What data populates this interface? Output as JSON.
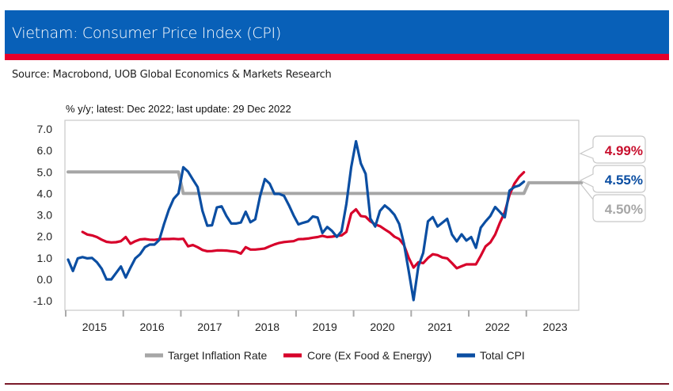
{
  "header": {
    "title": "Vietnam: Consumer Price Index (CPI)"
  },
  "source": "Source: Macrobond, UOB Global Economics & Markets Research",
  "chart_data": {
    "type": "line",
    "subtitle": "% y/y; latest: Dec 2022; last update: 29 Dec 2022",
    "ylim": [
      -1.0,
      7.0
    ],
    "yticks": [
      "7.0",
      "6.0",
      "5.0",
      "4.0",
      "3.0",
      "2.0",
      "1.0",
      "0.0",
      "-1.0"
    ],
    "xticks": [
      "2015",
      "2016",
      "2017",
      "2018",
      "2019",
      "2020",
      "2021",
      "2022",
      "2023"
    ],
    "xrange": [
      "2015-01",
      "2023-12"
    ],
    "grid": false,
    "legend_position": "bottom",
    "series": [
      {
        "name": "Target Inflation Rate",
        "color": "#A6A6A6",
        "start": "2015-01",
        "values": [
          5,
          5,
          5,
          5,
          5,
          5,
          5,
          5,
          5,
          5,
          5,
          5,
          5,
          5,
          5,
          5,
          5,
          5,
          5,
          5,
          5,
          5,
          5,
          5,
          4,
          4,
          4,
          4,
          4,
          4,
          4,
          4,
          4,
          4,
          4,
          4,
          4,
          4,
          4,
          4,
          4,
          4,
          4,
          4,
          4,
          4,
          4,
          4,
          4,
          4,
          4,
          4,
          4,
          4,
          4,
          4,
          4,
          4,
          4,
          4,
          4,
          4,
          4,
          4,
          4,
          4,
          4,
          4,
          4,
          4,
          4,
          4,
          4,
          4,
          4,
          4,
          4,
          4,
          4,
          4,
          4,
          4,
          4,
          4,
          4,
          4,
          4,
          4,
          4,
          4,
          4,
          4,
          4,
          4,
          4,
          4,
          4.5,
          4.5,
          4.5,
          4.5,
          4.5,
          4.5,
          4.5,
          4.5,
          4.5,
          4.5,
          4.5,
          4.5
        ]
      },
      {
        "name": "Core (Ex Food & Energy)",
        "color": "#D7002A",
        "start": "2015-04",
        "values": [
          2.21,
          2.09,
          2.05,
          1.97,
          1.85,
          1.75,
          1.72,
          1.73,
          1.78,
          1.97,
          1.66,
          1.78,
          1.86,
          1.88,
          1.85,
          1.84,
          1.87,
          1.88,
          1.88,
          1.89,
          1.87,
          1.89,
          1.54,
          1.6,
          1.5,
          1.37,
          1.31,
          1.32,
          1.35,
          1.35,
          1.34,
          1.31,
          1.29,
          1.2,
          1.5,
          1.39,
          1.39,
          1.41,
          1.44,
          1.54,
          1.63,
          1.7,
          1.74,
          1.76,
          1.78,
          1.87,
          1.88,
          1.9,
          1.94,
          1.97,
          2.03,
          1.97,
          1.99,
          2.03,
          2.05,
          2.21,
          3.07,
          3.26,
          2.95,
          2.92,
          2.7,
          2.56,
          2.48,
          2.33,
          2.19,
          1.99,
          1.88,
          1.6,
          1.0,
          0.55,
          0.8,
          0.76,
          1.0,
          1.17,
          1.13,
          1.02,
          0.98,
          0.76,
          0.52,
          0.61,
          0.7,
          0.7,
          0.7,
          1.1,
          1.54,
          1.72,
          2.09,
          2.64,
          3.13,
          3.93,
          4.45,
          4.77,
          4.99
        ]
      },
      {
        "name": "Total CPI",
        "color": "#0B4EA2",
        "start": "2015-01",
        "values": [
          0.92,
          0.39,
          0.98,
          1.04,
          0.98,
          1.0,
          0.8,
          0.5,
          0.0,
          0.0,
          0.3,
          0.6,
          0.09,
          0.55,
          0.98,
          1.17,
          1.5,
          1.62,
          1.62,
          1.84,
          2.58,
          3.25,
          3.75,
          4.0,
          5.22,
          5.02,
          4.65,
          4.3,
          3.19,
          2.5,
          2.52,
          3.35,
          3.4,
          2.95,
          2.6,
          2.6,
          2.65,
          3.15,
          2.66,
          2.8,
          3.86,
          4.67,
          4.46,
          3.98,
          3.98,
          3.89,
          3.46,
          2.98,
          2.56,
          2.64,
          2.7,
          2.93,
          2.88,
          2.16,
          2.44,
          2.26,
          1.98,
          2.24,
          3.52,
          5.23,
          6.43,
          5.4,
          4.91,
          2.83,
          2.46,
          3.19,
          3.44,
          3.26,
          3.01,
          2.58,
          1.66,
          0.37,
          -0.96,
          0.61,
          1.23,
          2.7,
          2.9,
          2.46,
          2.64,
          2.82,
          2.09,
          1.77,
          2.1,
          1.81,
          1.97,
          1.47,
          2.41,
          2.7,
          2.95,
          3.37,
          3.14,
          2.89,
          4.13,
          4.3,
          4.37,
          4.55
        ]
      }
    ],
    "latest_labels": [
      {
        "text": "4.99%",
        "color": "#C8102E"
      },
      {
        "text": "4.55%",
        "color": "#0B4EA2"
      },
      {
        "text": "4.50%",
        "color": "#A6A6A6"
      }
    ]
  }
}
